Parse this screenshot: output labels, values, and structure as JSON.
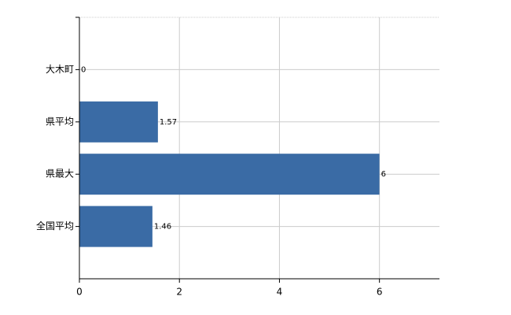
{
  "chart_data": {
    "type": "hbar",
    "categories": [
      "大木町",
      "県平均",
      "県最大",
      "全国平均"
    ],
    "values": [
      0,
      1.57,
      6,
      1.46
    ],
    "color": "#3a6ba5",
    "xlim": [
      0,
      7.2
    ],
    "xticks": [
      0,
      2,
      4,
      6
    ],
    "grid": true
  }
}
